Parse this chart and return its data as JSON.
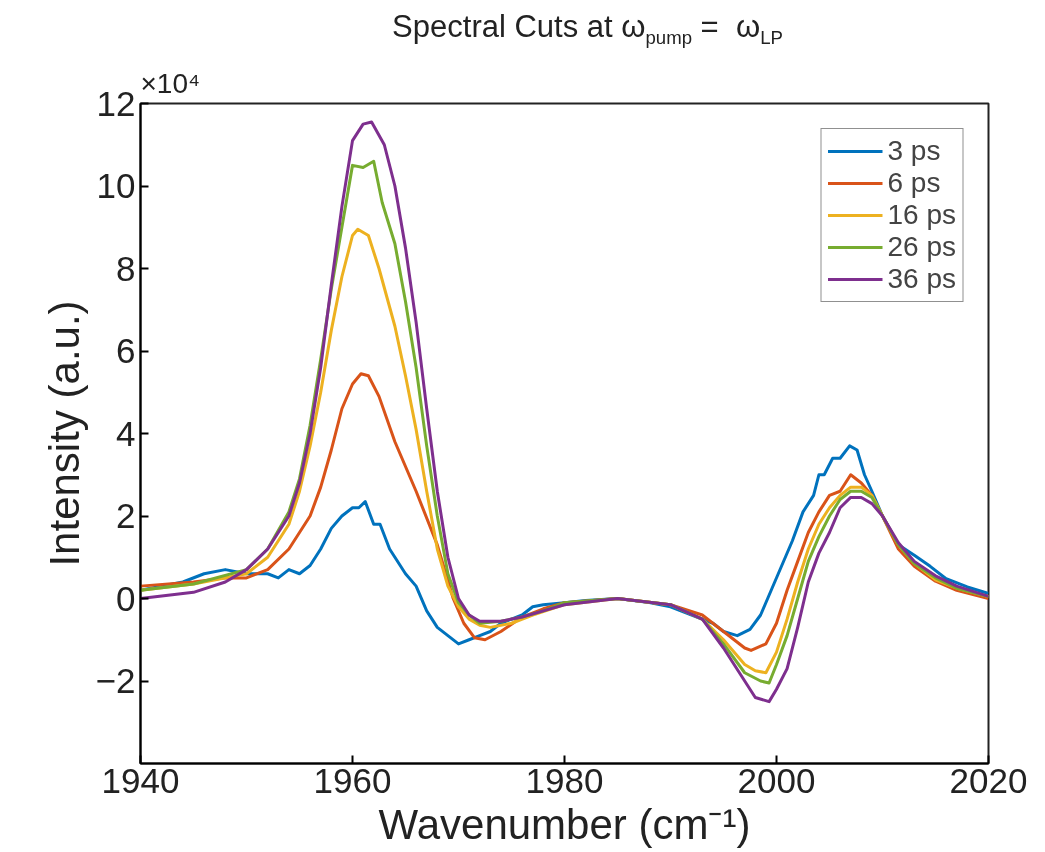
{
  "chart_data": {
    "type": "line",
    "title": "Spectral Cuts at ω$_{pump}$ =  ω$_{LP}$",
    "xlabel": "Wavenumber (cm⁻¹)",
    "ylabel": "Intensity (a.u.)",
    "annotations": [
      "×10⁴"
    ],
    "xlim": [
      1940,
      2020
    ],
    "ylim": [
      -4,
      12
    ],
    "xticks": [
      1940,
      1960,
      1980,
      2000,
      2020
    ],
    "yticks": [
      -2,
      0,
      2,
      4,
      6,
      8,
      10,
      12
    ],
    "grid": false,
    "legend": "top right",
    "line_style": "solid",
    "series": [
      {
        "name": "3 ps",
        "color": "#0072bd",
        "x": [
          1940,
          1944,
          1946,
          1948,
          1950,
          1952,
          1953,
          1954,
          1955,
          1956,
          1957,
          1958,
          1959,
          1960,
          1960.6,
          1961.2,
          1962,
          1962.6,
          1963.5,
          1964,
          1965,
          1966,
          1967,
          1968,
          1969,
          1970,
          1971,
          1972,
          1973,
          1974,
          1975,
          1976,
          1977,
          1978,
          1980,
          1982,
          1985,
          1988,
          1990,
          1992,
          1994,
          1995,
          1996.3,
          1997.5,
          1998.5,
          1999.5,
          2000.5,
          2001.5,
          2002.5,
          2003.5,
          2004,
          2004.5,
          2005.3,
          2006,
          2006.9,
          2007.6,
          2008.3,
          2009,
          2010,
          2011.5,
          2013,
          2014.5,
          2016,
          2018,
          2020
        ],
        "values": [
          0.2,
          0.4,
          0.6,
          0.7,
          0.6,
          0.6,
          0.5,
          0.7,
          0.6,
          0.8,
          1.2,
          1.7,
          2.0,
          2.2,
          2.2,
          2.35,
          1.8,
          1.8,
          1.2,
          1.0,
          0.6,
          0.3,
          -0.3,
          -0.7,
          -0.9,
          -1.1,
          -1.0,
          -0.9,
          -0.8,
          -0.6,
          -0.5,
          -0.4,
          -0.2,
          -0.15,
          -0.1,
          -0.05,
          0,
          -0.1,
          -0.2,
          -0.4,
          -0.6,
          -0.8,
          -0.9,
          -0.75,
          -0.4,
          0.2,
          0.8,
          1.4,
          2.1,
          2.5,
          3.0,
          3.0,
          3.4,
          3.4,
          3.7,
          3.6,
          3.0,
          2.6,
          2.0,
          1.3,
          1.05,
          0.78,
          0.48,
          0.28,
          0.12
        ]
      },
      {
        "name": "6 ps",
        "color": "#d95319",
        "x": [
          1940,
          1945,
          1948,
          1950,
          1952,
          1954,
          1956,
          1957,
          1958,
          1959,
          1960,
          1960.8,
          1961.5,
          1962.5,
          1964,
          1966,
          1968,
          1969.5,
          1970.5,
          1971.5,
          1972.5,
          1974,
          1976,
          1978,
          1980,
          1985,
          1990,
          1993,
          1995,
          1997,
          1997.6,
          1999,
          2000,
          2001,
          2002,
          2003,
          2004,
          2005,
          2006,
          2007,
          2008,
          2009,
          2010,
          2011.5,
          2013,
          2015,
          2017,
          2020
        ],
        "values": [
          0.3,
          0.4,
          0.5,
          0.5,
          0.7,
          1.2,
          2.0,
          2.7,
          3.6,
          4.6,
          5.2,
          5.45,
          5.4,
          4.9,
          3.8,
          2.6,
          1.3,
          0.0,
          -0.6,
          -0.95,
          -1.0,
          -0.8,
          -0.45,
          -0.25,
          -0.1,
          0,
          -0.15,
          -0.4,
          -0.8,
          -1.2,
          -1.26,
          -1.1,
          -0.6,
          0.2,
          0.9,
          1.6,
          2.1,
          2.5,
          2.6,
          3.0,
          2.8,
          2.5,
          2.0,
          1.2,
          0.78,
          0.42,
          0.2,
          0.0
        ]
      },
      {
        "name": "16 ps",
        "color": "#edb120",
        "x": [
          1940,
          1945,
          1950,
          1952,
          1954,
          1955,
          1956,
          1957,
          1958,
          1959,
          1960,
          1960.5,
          1961.5,
          1962.5,
          1964,
          1965,
          1966,
          1967,
          1968,
          1969,
          1970,
          1971,
          1972,
          1973,
          1975,
          1977,
          1980,
          1985,
          1990,
          1993,
          1995,
          1997,
          1998,
          1999,
          2000,
          2001,
          2002,
          2003,
          2004,
          2005,
          2006,
          2007,
          2008,
          2009,
          2010,
          2011.5,
          2013,
          2015,
          2017,
          2020
        ],
        "values": [
          0.2,
          0.35,
          0.6,
          1.0,
          1.8,
          2.6,
          3.7,
          5.0,
          6.5,
          7.8,
          8.8,
          8.95,
          8.8,
          8.0,
          6.6,
          5.4,
          4.1,
          2.6,
          1.2,
          0.3,
          -0.2,
          -0.5,
          -0.65,
          -0.7,
          -0.6,
          -0.4,
          -0.15,
          0,
          -0.15,
          -0.5,
          -1.0,
          -1.6,
          -1.75,
          -1.8,
          -1.3,
          -0.5,
          0.4,
          1.2,
          1.8,
          2.2,
          2.5,
          2.7,
          2.7,
          2.5,
          2.0,
          1.3,
          0.85,
          0.45,
          0.25,
          0.05
        ]
      },
      {
        "name": "26 ps",
        "color": "#77ac30",
        "x": [
          1940,
          1945,
          1950,
          1952,
          1954,
          1955,
          1956,
          1957,
          1958,
          1959,
          1960,
          1961,
          1962,
          1962.8,
          1964,
          1965,
          1966,
          1967,
          1968,
          1969,
          1970,
          1971,
          1972,
          1974,
          1976,
          1978,
          1980,
          1985,
          1990,
          1993,
          1995,
          1997,
          1998.5,
          1999.3,
          2000,
          2001,
          2002,
          2003,
          2004,
          2005,
          2006,
          2007,
          2008,
          2009,
          2010,
          2011.5,
          2013,
          2015,
          2017,
          2020
        ],
        "values": [
          0.2,
          0.35,
          0.7,
          1.2,
          2.1,
          2.9,
          4.2,
          5.8,
          7.5,
          9.0,
          10.5,
          10.45,
          10.6,
          9.6,
          8.6,
          7.2,
          5.6,
          3.7,
          2.0,
          0.6,
          -0.1,
          -0.4,
          -0.6,
          -0.55,
          -0.45,
          -0.3,
          -0.1,
          0,
          -0.15,
          -0.5,
          -1.1,
          -1.8,
          -2.0,
          -2.05,
          -1.6,
          -0.9,
          0,
          0.9,
          1.5,
          2.0,
          2.4,
          2.6,
          2.6,
          2.45,
          2.0,
          1.3,
          0.85,
          0.5,
          0.25,
          0.05
        ]
      },
      {
        "name": "36 ps",
        "color": "#7e2f8e",
        "x": [
          1940,
          1945,
          1948,
          1950,
          1952,
          1954,
          1955,
          1956,
          1957,
          1958,
          1959,
          1960,
          1961,
          1961.8,
          1963,
          1964,
          1965,
          1966,
          1967,
          1968,
          1969,
          1970,
          1971,
          1972,
          1974,
          1976,
          1978,
          1980,
          1985,
          1990,
          1993,
          1995,
          1997,
          1998,
          1999.3,
          2000,
          2001,
          2002,
          2003,
          2004,
          2005,
          2006,
          2007,
          2008,
          2009,
          2010,
          2011.5,
          2013,
          2015,
          2017,
          2020
        ],
        "values": [
          0.0,
          0.15,
          0.4,
          0.7,
          1.2,
          2.0,
          2.8,
          4.0,
          5.6,
          7.6,
          9.5,
          11.1,
          11.5,
          11.55,
          11.0,
          10.0,
          8.5,
          6.7,
          4.6,
          2.6,
          1.0,
          0.0,
          -0.4,
          -0.55,
          -0.55,
          -0.45,
          -0.3,
          -0.15,
          0,
          -0.15,
          -0.5,
          -1.2,
          -2.0,
          -2.4,
          -2.5,
          -2.2,
          -1.7,
          -0.7,
          0.4,
          1.1,
          1.6,
          2.2,
          2.45,
          2.45,
          2.3,
          2.0,
          1.35,
          0.9,
          0.55,
          0.3,
          0.05
        ]
      }
    ]
  }
}
